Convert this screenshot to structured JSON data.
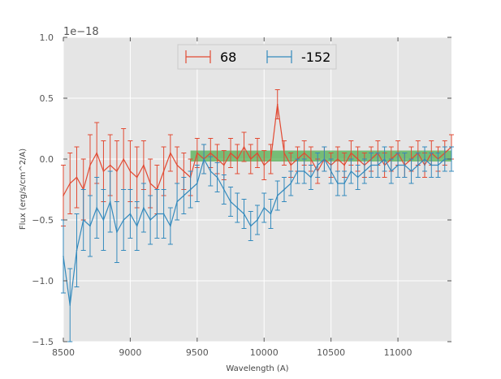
{
  "chart_data": {
    "type": "line",
    "title": "",
    "xlabel": "Wavelength (A)",
    "ylabel": "Flux (erg/s/cm^2/A)",
    "y_offset_label": "1e−18",
    "y_scale": 1e-18,
    "xlim": [
      8500,
      11400
    ],
    "ylim": [
      -1.5,
      1.0
    ],
    "xticks": [
      8500,
      9000,
      9500,
      10000,
      10500,
      11000
    ],
    "xtick_labels": [
      "8500",
      "9000",
      "9500",
      "10000",
      "10500",
      "11000"
    ],
    "yticks": [
      1.0,
      0.5,
      0.0,
      -0.5,
      -1.0,
      -1.5
    ],
    "ytick_labels": [
      "1.0",
      "0.5",
      "0.0",
      "−0.5",
      "−1.0",
      "−1.5"
    ],
    "grid": true,
    "legend_position": "top-center",
    "band": {
      "x_start": 9450,
      "x_end": 11400,
      "y_low": -0.02,
      "y_high": 0.07,
      "color": "#2ca02c"
    },
    "series": [
      {
        "name": "68",
        "color": "#e24a33",
        "x": [
          8500,
          8550,
          8600,
          8650,
          8700,
          8750,
          8800,
          8850,
          8900,
          8950,
          9000,
          9050,
          9100,
          9150,
          9200,
          9250,
          9300,
          9350,
          9400,
          9450,
          9500,
          9550,
          9600,
          9650,
          9700,
          9750,
          9800,
          9850,
          9900,
          9950,
          10000,
          10050,
          10100,
          10150,
          10200,
          10250,
          10300,
          10350,
          10400,
          10450,
          10500,
          10550,
          10600,
          10650,
          10700,
          10750,
          10800,
          10850,
          10900,
          10950,
          11000,
          11050,
          11100,
          11150,
          11200,
          11250,
          11300,
          11350,
          11400
        ],
        "values": [
          -0.3,
          -0.2,
          -0.15,
          -0.25,
          -0.05,
          0.05,
          -0.1,
          -0.05,
          -0.1,
          0.0,
          -0.1,
          -0.15,
          -0.05,
          -0.2,
          -0.25,
          -0.1,
          0.05,
          -0.05,
          -0.1,
          -0.15,
          0.05,
          0.0,
          0.05,
          0.0,
          -0.05,
          0.05,
          0.0,
          0.1,
          0.0,
          0.05,
          -0.05,
          0.0,
          0.45,
          0.05,
          -0.05,
          0.0,
          0.05,
          0.0,
          -0.1,
          0.0,
          -0.05,
          0.0,
          -0.05,
          0.05,
          0.0,
          -0.05,
          0.0,
          0.05,
          -0.05,
          0.0,
          0.05,
          -0.05,
          0.0,
          0.05,
          -0.05,
          0.05,
          0.0,
          0.05,
          0.1
        ],
        "errors": [
          0.25,
          0.25,
          0.25,
          0.25,
          0.25,
          0.25,
          0.25,
          0.25,
          0.25,
          0.25,
          0.25,
          0.25,
          0.2,
          0.2,
          0.2,
          0.2,
          0.15,
          0.15,
          0.15,
          0.15,
          0.12,
          0.12,
          0.12,
          0.12,
          0.12,
          0.12,
          0.12,
          0.12,
          0.12,
          0.12,
          0.12,
          0.12,
          0.12,
          0.1,
          0.1,
          0.1,
          0.1,
          0.1,
          0.1,
          0.1,
          0.1,
          0.1,
          0.1,
          0.1,
          0.1,
          0.1,
          0.1,
          0.1,
          0.1,
          0.1,
          0.1,
          0.1,
          0.1,
          0.1,
          0.1,
          0.1,
          0.1,
          0.1,
          0.1
        ]
      },
      {
        "name": "-152",
        "color": "#348abd",
        "x": [
          8500,
          8550,
          8600,
          8650,
          8700,
          8750,
          8800,
          8850,
          8900,
          8950,
          9000,
          9050,
          9100,
          9150,
          9200,
          9250,
          9300,
          9350,
          9400,
          9450,
          9500,
          9550,
          9600,
          9650,
          9700,
          9750,
          9800,
          9850,
          9900,
          9950,
          10000,
          10050,
          10100,
          10150,
          10200,
          10250,
          10300,
          10350,
          10400,
          10450,
          10500,
          10550,
          10600,
          10650,
          10700,
          10750,
          10800,
          10850,
          10900,
          10950,
          11000,
          11050,
          11100,
          11150,
          11200,
          11250,
          11300,
          11350,
          11400
        ],
        "values": [
          -0.8,
          -1.2,
          -0.75,
          -0.5,
          -0.55,
          -0.4,
          -0.5,
          -0.35,
          -0.6,
          -0.5,
          -0.45,
          -0.55,
          -0.4,
          -0.5,
          -0.45,
          -0.45,
          -0.55,
          -0.35,
          -0.3,
          -0.25,
          -0.2,
          0.0,
          -0.1,
          -0.15,
          -0.25,
          -0.35,
          -0.4,
          -0.45,
          -0.55,
          -0.5,
          -0.4,
          -0.45,
          -0.3,
          -0.25,
          -0.2,
          -0.1,
          -0.1,
          -0.15,
          -0.05,
          0.0,
          -0.1,
          -0.2,
          -0.2,
          -0.1,
          -0.15,
          -0.1,
          -0.05,
          -0.05,
          0.0,
          -0.1,
          -0.05,
          -0.05,
          -0.1,
          -0.05,
          0.0,
          -0.05,
          -0.05,
          0.0,
          0.0
        ],
        "errors": [
          0.3,
          0.3,
          0.3,
          0.25,
          0.25,
          0.25,
          0.25,
          0.25,
          0.25,
          0.25,
          0.2,
          0.2,
          0.2,
          0.2,
          0.2,
          0.2,
          0.15,
          0.15,
          0.15,
          0.15,
          0.15,
          0.12,
          0.12,
          0.12,
          0.12,
          0.12,
          0.12,
          0.12,
          0.12,
          0.12,
          0.12,
          0.12,
          0.12,
          0.1,
          0.1,
          0.1,
          0.1,
          0.1,
          0.1,
          0.1,
          0.1,
          0.1,
          0.1,
          0.1,
          0.1,
          0.1,
          0.1,
          0.1,
          0.1,
          0.1,
          0.1,
          0.1,
          0.1,
          0.1,
          0.1,
          0.1,
          0.1,
          0.1,
          0.1
        ]
      }
    ]
  },
  "colors": {
    "plot_background": "#e5e5e5",
    "grid": "#ffffff",
    "figure_background": "#ffffff"
  }
}
